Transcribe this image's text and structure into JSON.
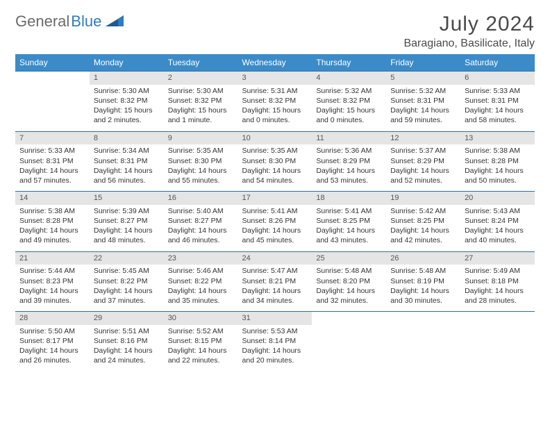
{
  "brand": {
    "part1": "General",
    "part2": "Blue"
  },
  "title": "July 2024",
  "location": "Baragiano, Basilicate, Italy",
  "colors": {
    "header_bg": "#3b8bc8",
    "header_text": "#ffffff",
    "daynum_bg": "#e5e5e5",
    "row_border": "#2f6fa3",
    "text": "#333333",
    "title_text": "#4a4a4a",
    "logo_gray": "#6a6a6a",
    "logo_blue": "#2f7bbf"
  },
  "weekdays": [
    "Sunday",
    "Monday",
    "Tuesday",
    "Wednesday",
    "Thursday",
    "Friday",
    "Saturday"
  ],
  "weeks": [
    [
      {
        "n": "",
        "sr": "",
        "ss": "",
        "dl": ""
      },
      {
        "n": "1",
        "sr": "Sunrise: 5:30 AM",
        "ss": "Sunset: 8:32 PM",
        "dl": "Daylight: 15 hours and 2 minutes."
      },
      {
        "n": "2",
        "sr": "Sunrise: 5:30 AM",
        "ss": "Sunset: 8:32 PM",
        "dl": "Daylight: 15 hours and 1 minute."
      },
      {
        "n": "3",
        "sr": "Sunrise: 5:31 AM",
        "ss": "Sunset: 8:32 PM",
        "dl": "Daylight: 15 hours and 0 minutes."
      },
      {
        "n": "4",
        "sr": "Sunrise: 5:32 AM",
        "ss": "Sunset: 8:32 PM",
        "dl": "Daylight: 15 hours and 0 minutes."
      },
      {
        "n": "5",
        "sr": "Sunrise: 5:32 AM",
        "ss": "Sunset: 8:31 PM",
        "dl": "Daylight: 14 hours and 59 minutes."
      },
      {
        "n": "6",
        "sr": "Sunrise: 5:33 AM",
        "ss": "Sunset: 8:31 PM",
        "dl": "Daylight: 14 hours and 58 minutes."
      }
    ],
    [
      {
        "n": "7",
        "sr": "Sunrise: 5:33 AM",
        "ss": "Sunset: 8:31 PM",
        "dl": "Daylight: 14 hours and 57 minutes."
      },
      {
        "n": "8",
        "sr": "Sunrise: 5:34 AM",
        "ss": "Sunset: 8:31 PM",
        "dl": "Daylight: 14 hours and 56 minutes."
      },
      {
        "n": "9",
        "sr": "Sunrise: 5:35 AM",
        "ss": "Sunset: 8:30 PM",
        "dl": "Daylight: 14 hours and 55 minutes."
      },
      {
        "n": "10",
        "sr": "Sunrise: 5:35 AM",
        "ss": "Sunset: 8:30 PM",
        "dl": "Daylight: 14 hours and 54 minutes."
      },
      {
        "n": "11",
        "sr": "Sunrise: 5:36 AM",
        "ss": "Sunset: 8:29 PM",
        "dl": "Daylight: 14 hours and 53 minutes."
      },
      {
        "n": "12",
        "sr": "Sunrise: 5:37 AM",
        "ss": "Sunset: 8:29 PM",
        "dl": "Daylight: 14 hours and 52 minutes."
      },
      {
        "n": "13",
        "sr": "Sunrise: 5:38 AM",
        "ss": "Sunset: 8:28 PM",
        "dl": "Daylight: 14 hours and 50 minutes."
      }
    ],
    [
      {
        "n": "14",
        "sr": "Sunrise: 5:38 AM",
        "ss": "Sunset: 8:28 PM",
        "dl": "Daylight: 14 hours and 49 minutes."
      },
      {
        "n": "15",
        "sr": "Sunrise: 5:39 AM",
        "ss": "Sunset: 8:27 PM",
        "dl": "Daylight: 14 hours and 48 minutes."
      },
      {
        "n": "16",
        "sr": "Sunrise: 5:40 AM",
        "ss": "Sunset: 8:27 PM",
        "dl": "Daylight: 14 hours and 46 minutes."
      },
      {
        "n": "17",
        "sr": "Sunrise: 5:41 AM",
        "ss": "Sunset: 8:26 PM",
        "dl": "Daylight: 14 hours and 45 minutes."
      },
      {
        "n": "18",
        "sr": "Sunrise: 5:41 AM",
        "ss": "Sunset: 8:25 PM",
        "dl": "Daylight: 14 hours and 43 minutes."
      },
      {
        "n": "19",
        "sr": "Sunrise: 5:42 AM",
        "ss": "Sunset: 8:25 PM",
        "dl": "Daylight: 14 hours and 42 minutes."
      },
      {
        "n": "20",
        "sr": "Sunrise: 5:43 AM",
        "ss": "Sunset: 8:24 PM",
        "dl": "Daylight: 14 hours and 40 minutes."
      }
    ],
    [
      {
        "n": "21",
        "sr": "Sunrise: 5:44 AM",
        "ss": "Sunset: 8:23 PM",
        "dl": "Daylight: 14 hours and 39 minutes."
      },
      {
        "n": "22",
        "sr": "Sunrise: 5:45 AM",
        "ss": "Sunset: 8:22 PM",
        "dl": "Daylight: 14 hours and 37 minutes."
      },
      {
        "n": "23",
        "sr": "Sunrise: 5:46 AM",
        "ss": "Sunset: 8:22 PM",
        "dl": "Daylight: 14 hours and 35 minutes."
      },
      {
        "n": "24",
        "sr": "Sunrise: 5:47 AM",
        "ss": "Sunset: 8:21 PM",
        "dl": "Daylight: 14 hours and 34 minutes."
      },
      {
        "n": "25",
        "sr": "Sunrise: 5:48 AM",
        "ss": "Sunset: 8:20 PM",
        "dl": "Daylight: 14 hours and 32 minutes."
      },
      {
        "n": "26",
        "sr": "Sunrise: 5:48 AM",
        "ss": "Sunset: 8:19 PM",
        "dl": "Daylight: 14 hours and 30 minutes."
      },
      {
        "n": "27",
        "sr": "Sunrise: 5:49 AM",
        "ss": "Sunset: 8:18 PM",
        "dl": "Daylight: 14 hours and 28 minutes."
      }
    ],
    [
      {
        "n": "28",
        "sr": "Sunrise: 5:50 AM",
        "ss": "Sunset: 8:17 PM",
        "dl": "Daylight: 14 hours and 26 minutes."
      },
      {
        "n": "29",
        "sr": "Sunrise: 5:51 AM",
        "ss": "Sunset: 8:16 PM",
        "dl": "Daylight: 14 hours and 24 minutes."
      },
      {
        "n": "30",
        "sr": "Sunrise: 5:52 AM",
        "ss": "Sunset: 8:15 PM",
        "dl": "Daylight: 14 hours and 22 minutes."
      },
      {
        "n": "31",
        "sr": "Sunrise: 5:53 AM",
        "ss": "Sunset: 8:14 PM",
        "dl": "Daylight: 14 hours and 20 minutes."
      },
      {
        "n": "",
        "sr": "",
        "ss": "",
        "dl": ""
      },
      {
        "n": "",
        "sr": "",
        "ss": "",
        "dl": ""
      },
      {
        "n": "",
        "sr": "",
        "ss": "",
        "dl": ""
      }
    ]
  ]
}
